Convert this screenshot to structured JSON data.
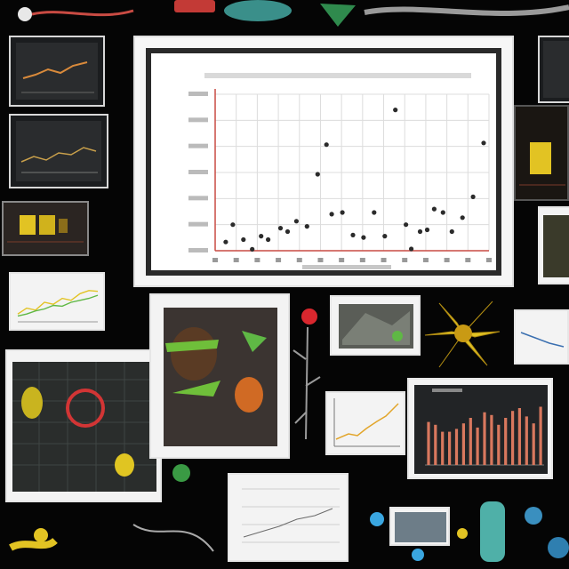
{
  "scene": {
    "background": "#050505",
    "accent_red": "#c94b43",
    "accent_yellow": "#e2c323",
    "accent_green": "#5fb845",
    "accent_blue": "#3aa6e0"
  },
  "main_chart": {
    "chart_data": {
      "type": "scatter",
      "title": "",
      "xlabel": "",
      "ylabel": "",
      "x_tick_count": 13,
      "y_tick_count": 6,
      "grid": true,
      "points": [
        [
          0.6,
          0.25
        ],
        [
          1.0,
          0.75
        ],
        [
          1.6,
          0.32
        ],
        [
          2.1,
          0.04
        ],
        [
          2.6,
          0.42
        ],
        [
          3.0,
          0.32
        ],
        [
          3.7,
          0.65
        ],
        [
          4.1,
          0.55
        ],
        [
          4.6,
          0.85
        ],
        [
          5.2,
          0.7
        ],
        [
          5.8,
          2.2
        ],
        [
          6.3,
          3.05
        ],
        [
          6.6,
          1.05
        ],
        [
          7.2,
          1.1
        ],
        [
          7.8,
          0.45
        ],
        [
          8.4,
          0.38
        ],
        [
          9.0,
          1.1
        ],
        [
          9.6,
          0.42
        ],
        [
          10.2,
          4.05
        ],
        [
          10.8,
          0.75
        ],
        [
          11.1,
          0.05
        ],
        [
          11.6,
          0.55
        ],
        [
          12.0,
          0.6
        ],
        [
          12.4,
          1.2
        ],
        [
          12.9,
          1.1
        ],
        [
          13.4,
          0.55
        ],
        [
          14.0,
          0.95
        ],
        [
          14.6,
          1.55
        ],
        [
          15.2,
          3.1
        ]
      ],
      "xlim": [
        0,
        15.5
      ],
      "ylim": [
        0,
        4.5
      ]
    }
  },
  "bar_panel": {
    "chart_data": {
      "type": "bar",
      "values": [
        3.1,
        2.9,
        2.4,
        2.4,
        2.6,
        3.0,
        3.4,
        2.7,
        3.8,
        3.6,
        2.9,
        3.4,
        3.9,
        4.1,
        3.5,
        3.0,
        4.2
      ],
      "ylim": [
        0,
        5
      ]
    }
  },
  "small_line_panel": {
    "chart_data": {
      "type": "line",
      "series": [
        {
          "values": [
            0.2,
            0.35,
            0.3,
            0.5,
            0.45,
            0.6,
            0.55,
            0.72,
            0.8,
            0.78
          ]
        },
        {
          "values": [
            0.15,
            0.2,
            0.28,
            0.33,
            0.42,
            0.4,
            0.5,
            0.55,
            0.6,
            0.68
          ]
        }
      ]
    }
  },
  "icons": {
    "thumb_chart_a": "line-chart-icon",
    "thumb_chart_b": "bar-chart-icon",
    "flower": "flower-icon",
    "specimen": "specimen-icon"
  }
}
